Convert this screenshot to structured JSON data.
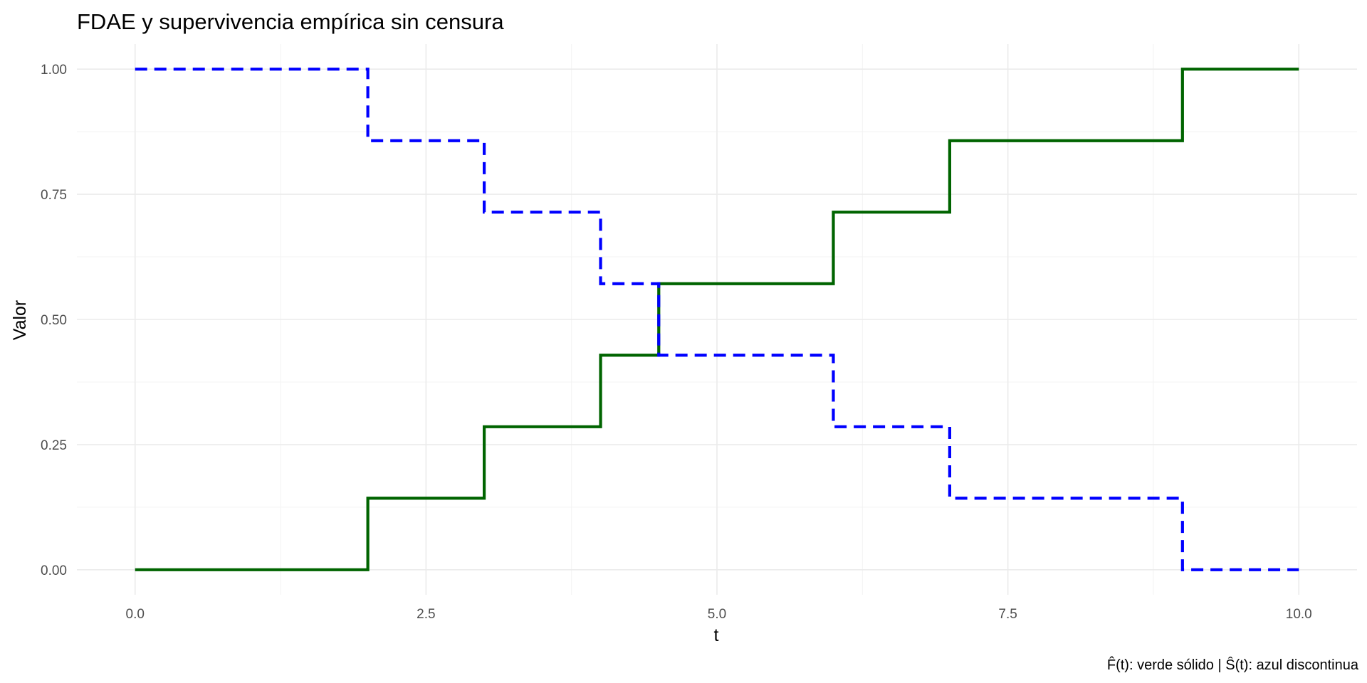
{
  "chart_data": {
    "type": "line",
    "title": "FDAE y supervivencia empírica sin censura",
    "xlabel": "t",
    "ylabel": "Valor",
    "caption": "F̂(t): verde sólido | Ŝ(t): azul discontinua",
    "xlim": [
      -0.5,
      10.5
    ],
    "ylim": [
      -0.05,
      1.05
    ],
    "x_ticks": [
      0,
      2.5,
      5,
      7.5,
      10
    ],
    "x_tick_labels": [
      "0.0",
      "2.5",
      "5.0",
      "7.5",
      "10.0"
    ],
    "y_ticks": [
      0,
      0.25,
      0.5,
      0.75,
      1
    ],
    "y_tick_labels": [
      "0.00",
      "0.25",
      "0.50",
      "0.75",
      "1.00"
    ],
    "grid": true,
    "legend": "none",
    "series": [
      {
        "step": true,
        "color": "#006400",
        "dash": "solid",
        "x": [
          0,
          2,
          3,
          4,
          4.5,
          6,
          7,
          9,
          10
        ],
        "y": [
          0,
          0.1429,
          0.2857,
          0.4286,
          0.5714,
          0.7143,
          0.8571,
          1.0,
          1.0
        ]
      },
      {
        "step": true,
        "color": "#0000ff",
        "dash": "dashed",
        "x": [
          0,
          2,
          3,
          4,
          4.5,
          6,
          7,
          9,
          10
        ],
        "y": [
          1.0,
          0.8571,
          0.7143,
          0.5714,
          0.4286,
          0.2857,
          0.1429,
          0.0,
          0.0
        ]
      }
    ]
  }
}
